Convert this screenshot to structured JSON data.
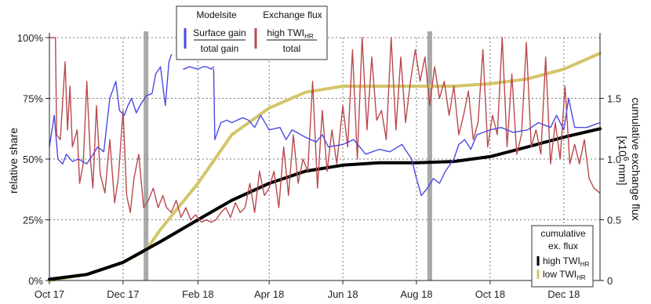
{
  "chart_data": {
    "type": "line",
    "x_ticks": [
      "Oct 17",
      "Dec 17",
      "Feb 18",
      "Apr 18",
      "Jun 18",
      "Aug 18",
      "Oct 18",
      "Dec 18"
    ],
    "xlim": [
      "2017-10-01",
      "2018-12-31"
    ],
    "left_axis": {
      "label": "relative share",
      "ticks": [
        "0%",
        "25%",
        "50%",
        "75%",
        "100%"
      ],
      "ylim": [
        0,
        100
      ],
      "grid": true
    },
    "right_axis": {
      "label": "cumulative exchange flux [x10⁶ mm]",
      "label_main": "cumulative exchange flux",
      "label_unit_pre": "[x10",
      "label_unit_sup": "6",
      "label_unit_post": " mm]",
      "ticks": [
        "0",
        "0.5",
        "1.0",
        "1.5"
      ],
      "ylim": [
        0,
        2.0
      ]
    },
    "vertical_markers": [
      "2017-12-20",
      "2018-08-12"
    ],
    "legend_top": {
      "group1_title": "Modelsite",
      "group1_num": "Surface gain",
      "group1_den": "total gain",
      "group2_title": "Exchange flux",
      "group2_num_pre": "high TWI",
      "group2_num_sub": "HR",
      "group2_den": "total"
    },
    "legend_bottom": {
      "title_line1": "cumulative",
      "title_line2": "ex. flux",
      "item1_pre": "high TWI",
      "item1_sub": "HR",
      "item2_pre": "low TWI",
      "item2_sub": "HR"
    },
    "series": [
      {
        "name": "Surface gain / total gain",
        "axis": "left",
        "color": "#4a4ae0",
        "segments": [
          {
            "x": [
              "2017-10-01",
              "2017-10-05",
              "2017-10-08",
              "2017-10-12",
              "2017-10-15",
              "2017-10-20",
              "2017-10-25",
              "2017-11-01",
              "2017-11-05",
              "2017-11-10",
              "2017-11-15",
              "2017-11-20",
              "2017-11-25",
              "2017-11-28",
              "2017-12-02",
              "2017-12-05",
              "2017-12-08",
              "2017-12-12",
              "2017-12-15",
              "2017-12-20",
              "2017-12-25",
              "2017-12-28",
              "2018-01-01",
              "2018-01-05",
              "2018-01-08",
              "2018-01-10"
            ],
            "y": [
              55,
              68,
              50,
              48,
              52,
              49,
              50,
              48,
              51,
              55,
              53,
              75,
              82,
              70,
              68,
              72,
              75,
              69,
              72,
              76,
              77,
              85,
              88,
              72,
              90,
              93
            ]
          },
          {
            "x": [
              "2018-01-20",
              "2018-01-25",
              "2018-02-01",
              "2018-02-05",
              "2018-02-08",
              "2018-02-12",
              "2018-02-14"
            ],
            "y": [
              87,
              88,
              87,
              88,
              88,
              87,
              88
            ]
          },
          {
            "x": [
              "2018-02-14",
              "2018-02-15",
              "2018-02-20",
              "2018-02-25",
              "2018-03-01",
              "2018-03-10",
              "2018-03-15",
              "2018-03-20",
              "2018-03-25",
              "2018-04-01",
              "2018-04-10",
              "2018-04-15",
              "2018-04-20",
              "2018-05-01",
              "2018-05-10",
              "2018-05-15",
              "2018-05-20",
              "2018-06-01",
              "2018-06-10",
              "2018-06-20",
              "2018-07-01",
              "2018-07-10",
              "2018-07-20",
              "2018-07-28",
              "2018-08-01",
              "2018-08-05",
              "2018-08-10",
              "2018-08-15",
              "2018-08-20",
              "2018-08-25",
              "2018-09-01",
              "2018-09-05",
              "2018-09-10",
              "2018-09-15",
              "2018-09-20",
              "2018-10-01",
              "2018-10-10",
              "2018-10-20",
              "2018-11-01",
              "2018-11-10",
              "2018-11-20",
              "2018-11-25",
              "2018-12-01",
              "2018-12-05",
              "2018-12-10",
              "2018-12-20",
              "2018-12-31"
            ],
            "y": [
              87,
              58,
              65,
              66,
              65,
              67,
              66,
              63,
              68,
              62,
              63,
              58,
              62,
              59,
              57,
              60,
              55,
              56,
              58,
              52,
              54,
              53,
              56,
              50,
              42,
              35,
              38,
              42,
              40,
              45,
              50,
              56,
              58,
              54,
              60,
              62,
              63,
              61,
              62,
              65,
              63,
              68,
              62,
              75,
              63,
              63,
              65
            ]
          }
        ]
      },
      {
        "name": "high TWI_HR / total",
        "axis": "left",
        "color": "#b9494d",
        "segments": [
          {
            "x": [
              "2017-10-01",
              "2017-10-06",
              "2017-10-07",
              "2017-10-10",
              "2017-10-14",
              "2017-10-16",
              "2017-10-18",
              "2017-10-20",
              "2017-10-24",
              "2017-10-26",
              "2017-10-29",
              "2017-11-01",
              "2017-11-04",
              "2017-11-06",
              "2017-11-09",
              "2017-11-12",
              "2017-11-16",
              "2017-11-20",
              "2017-11-24",
              "2017-11-27",
              "2017-12-01",
              "2017-12-04",
              "2017-12-07",
              "2017-12-10",
              "2017-12-14",
              "2017-12-18",
              "2017-12-22",
              "2017-12-26",
              "2017-12-30",
              "2018-01-03",
              "2018-01-06",
              "2018-01-10",
              "2018-01-14",
              "2018-01-18",
              "2018-01-22",
              "2018-01-26",
              "2018-01-30",
              "2018-02-04",
              "2018-02-08",
              "2018-02-12",
              "2018-02-16",
              "2018-02-20",
              "2018-02-24",
              "2018-02-28",
              "2018-03-04",
              "2018-03-08",
              "2018-03-12",
              "2018-03-16",
              "2018-03-20",
              "2018-03-24",
              "2018-03-28",
              "2018-04-01",
              "2018-04-05",
              "2018-04-09",
              "2018-04-13",
              "2018-04-17",
              "2018-04-21",
              "2018-04-25",
              "2018-04-29",
              "2018-05-03",
              "2018-05-07",
              "2018-05-11",
              "2018-05-15",
              "2018-05-19",
              "2018-05-23",
              "2018-05-27",
              "2018-06-01",
              "2018-06-05",
              "2018-06-09",
              "2018-06-13",
              "2018-06-17",
              "2018-06-21",
              "2018-06-25",
              "2018-06-29",
              "2018-07-03",
              "2018-07-07",
              "2018-07-11",
              "2018-07-15",
              "2018-07-19",
              "2018-07-23",
              "2018-07-27",
              "2018-07-31",
              "2018-08-04",
              "2018-08-08",
              "2018-08-12",
              "2018-08-16",
              "2018-08-20",
              "2018-08-24",
              "2018-08-28",
              "2018-09-01",
              "2018-09-05",
              "2018-09-09",
              "2018-09-13",
              "2018-09-17",
              "2018-09-21",
              "2018-09-25",
              "2018-09-29",
              "2018-10-03",
              "2018-10-07",
              "2018-10-11",
              "2018-10-15",
              "2018-10-19",
              "2018-10-23",
              "2018-10-27",
              "2018-10-31",
              "2018-11-04",
              "2018-11-08",
              "2018-11-12",
              "2018-11-16",
              "2018-11-20",
              "2018-11-24",
              "2018-11-28",
              "2018-12-02",
              "2018-12-06",
              "2018-12-10",
              "2018-12-14",
              "2018-12-18",
              "2018-12-22",
              "2018-12-26",
              "2018-12-31"
            ],
            "y": [
              100,
              100,
              60,
              58,
              90,
              62,
              80,
              55,
              62,
              40,
              48,
              82,
              50,
              38,
              72,
              44,
              36,
              58,
              32,
              42,
              70,
              35,
              28,
              42,
              52,
              30,
              33,
              38,
              30,
              35,
              30,
              28,
              33,
              26,
              30,
              25,
              27,
              24,
              25,
              24,
              25,
              28,
              30,
              26,
              32,
              28,
              30,
              40,
              28,
              45,
              35,
              38,
              45,
              30,
              55,
              35,
              60,
              40,
              50,
              45,
              82,
              38,
              70,
              45,
              62,
              48,
              72,
              55,
              95,
              50,
              100,
              62,
              92,
              66,
              70,
              58,
              100,
              62,
              92,
              65,
              82,
              95,
              82,
              92,
              72,
              88,
              75,
              82,
              68,
              80,
              60,
              68,
              78,
              58,
              65,
              95,
              55,
              68,
              60,
              100,
              55,
              85,
              52,
              60,
              98,
              55,
              62,
              52,
              92,
              48,
              65,
              50,
              80,
              48,
              56,
              48,
              58,
              42,
              38,
              36
            ]
          }
        ]
      },
      {
        "name": "high TWI_HR",
        "axis": "right",
        "color": "#000000",
        "segments": [
          {
            "x": [
              "2017-10-01",
              "2017-11-01",
              "2017-12-01",
              "2018-01-01",
              "2018-02-01",
              "2018-03-01",
              "2018-04-01",
              "2018-05-01",
              "2018-06-01",
              "2018-07-01",
              "2018-08-01",
              "2018-09-01",
              "2018-10-01",
              "2018-11-01",
              "2018-12-01",
              "2018-12-31"
            ],
            "y": [
              0.01,
              0.05,
              0.15,
              0.32,
              0.5,
              0.66,
              0.8,
              0.9,
              0.95,
              0.97,
              0.97,
              0.98,
              1.02,
              1.1,
              1.18,
              1.25
            ]
          }
        ]
      },
      {
        "name": "low TWI_HR",
        "axis": "right",
        "color": "#d4c56a",
        "segments": [
          {
            "x": [
              "2017-10-01",
              "2017-11-01",
              "2017-12-01",
              "2017-12-20",
              "2018-01-01",
              "2018-02-01",
              "2018-03-01",
              "2018-04-01",
              "2018-05-01",
              "2018-06-01",
              "2018-07-01",
              "2018-08-01",
              "2018-09-01",
              "2018-10-01",
              "2018-11-01",
              "2018-12-01",
              "2018-12-31"
            ],
            "y": [
              0.0,
              0.05,
              0.15,
              0.25,
              0.42,
              0.8,
              1.2,
              1.42,
              1.55,
              1.6,
              1.6,
              1.6,
              1.6,
              1.62,
              1.66,
              1.74,
              1.87
            ]
          }
        ]
      }
    ]
  }
}
